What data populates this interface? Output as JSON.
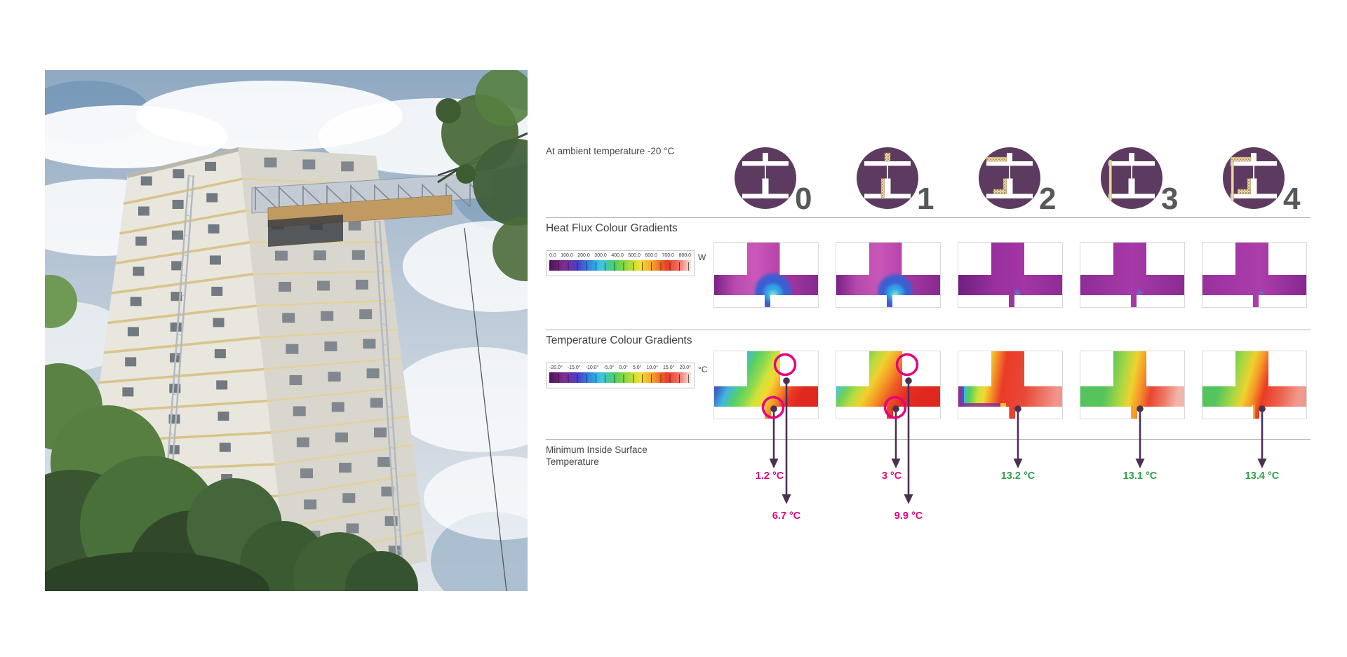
{
  "photo": {
    "description": "low-angle photo of a white brick tower block with yellow stripe bands, rooftop construction platform and hoist masts, trees and cloudy sky"
  },
  "ambient_note": "At ambient temperature -20 °C",
  "detail_variants": [
    {
      "label": "0",
      "icon": "junction-uninsulated"
    },
    {
      "label": "1",
      "icon": "junction-insulated-wall-ends"
    },
    {
      "label": "2",
      "icon": "junction-insulated-wall-and-slab"
    },
    {
      "label": "3",
      "icon": "junction-external-insulation-layer"
    },
    {
      "label": "4",
      "icon": "junction-external-layer-plus-internal-insulation"
    }
  ],
  "heat_flux": {
    "title": "Heat Flux Colour Gradients",
    "scale": {
      "unit": "W",
      "ticks": [
        "0.0",
        "100.0",
        "200.0",
        "300.0",
        "400.0",
        "500.0",
        "600.0",
        "700.0",
        "800.0"
      ]
    },
    "images": [
      {
        "variant": "0",
        "stops": [
          [
            "#7a2186",
            0
          ],
          [
            "#b84aae",
            20
          ],
          [
            "#c95ab8",
            40
          ],
          [
            "#a93aa4",
            62
          ],
          [
            "#882a90",
            100
          ]
        ],
        "plume": 1.0,
        "glow": true,
        "edge": true
      },
      {
        "variant": "1",
        "stops": [
          [
            "#7a2186",
            0
          ],
          [
            "#b54aae",
            20
          ],
          [
            "#c557b6",
            42
          ],
          [
            "#a93aa4",
            64
          ],
          [
            "#882a90",
            100
          ]
        ],
        "plume": 0.95,
        "glow": true,
        "edge": true
      },
      {
        "variant": "2",
        "stops": [
          [
            "#6f1f7e",
            0
          ],
          [
            "#98309e",
            35
          ],
          [
            "#a535a5",
            62
          ],
          [
            "#8e2d96",
            100
          ]
        ],
        "plume": 0.2,
        "glow": false,
        "edge": false
      },
      {
        "variant": "3",
        "stops": [
          [
            "#8e2d96",
            0
          ],
          [
            "#a63aa8",
            50
          ],
          [
            "#8a2b92",
            100
          ]
        ],
        "plume": 0.17,
        "glow": false,
        "edge": false
      },
      {
        "variant": "4",
        "stops": [
          [
            "#96319e",
            0
          ],
          [
            "#ad3dab",
            55
          ],
          [
            "#862990",
            100
          ]
        ],
        "plume": 0.15,
        "glow": false,
        "edge": false
      }
    ]
  },
  "temperature": {
    "title": "Temperature Colour Gradients",
    "scale": {
      "unit": "°C",
      "ticks": [
        "-20.0°",
        "-15.0°",
        "-10.0°",
        "-5.0°",
        "0.0°",
        "5.0°",
        "10.0°",
        "15.0°",
        "20.0°"
      ]
    },
    "images": [
      {
        "variant": "0",
        "angle": [
          0,
          0,
          0.95,
          0.3
        ],
        "stops": [
          [
            "#5b1f77",
            0
          ],
          [
            "#6d34a0",
            10
          ],
          [
            "#3f64c9",
            20
          ],
          [
            "#3fb7e0",
            30
          ],
          [
            "#57cf66",
            41
          ],
          [
            "#8ed94f",
            51
          ],
          [
            "#cfe23a",
            59
          ],
          [
            "#f2d832",
            67
          ],
          [
            "#f59b28",
            77
          ],
          [
            "#ea3b27",
            89
          ],
          [
            "#e02820",
            100
          ]
        ],
        "rings": true,
        "extras": "none"
      },
      {
        "variant": "1",
        "angle": [
          0,
          0,
          0.95,
          0.35
        ],
        "stops": [
          [
            "#7b3f9e",
            0
          ],
          [
            "#4a6fd0",
            10
          ],
          [
            "#46c4e4",
            18
          ],
          [
            "#6ed05c",
            28
          ],
          [
            "#b5dc3f",
            38
          ],
          [
            "#f0d02f",
            48
          ],
          [
            "#f59f26",
            58
          ],
          [
            "#ed5b24",
            70
          ],
          [
            "#e52d22",
            84
          ],
          [
            "#e02820",
            100
          ]
        ],
        "rings": true,
        "extras": "none"
      },
      {
        "variant": "2",
        "angle": [
          0,
          0,
          1,
          0.1
        ],
        "stops": [
          [
            "#7a2a8e",
            0
          ],
          [
            "#4155c8",
            5
          ],
          [
            "#3fb7e0",
            10
          ],
          [
            "#52cf5f",
            17
          ],
          [
            "#c9e23a",
            25
          ],
          [
            "#f2d832",
            31
          ],
          [
            "#f59b28",
            37
          ],
          [
            "#ea3b27",
            47
          ],
          [
            "#e84a38",
            70
          ],
          [
            "#f0958a",
            100
          ]
        ],
        "rings": false,
        "extras": "edge2"
      },
      {
        "variant": "3",
        "angle": [
          0,
          0,
          1,
          0.12
        ],
        "stops": [
          [
            "#56c45c",
            0
          ],
          [
            "#56c45c",
            30
          ],
          [
            "#a8d842",
            45
          ],
          [
            "#f0d12f",
            55
          ],
          [
            "#f59b28",
            63
          ],
          [
            "#ea4530",
            74
          ],
          [
            "#ed7a66",
            88
          ],
          [
            "#f2b4a8",
            100
          ]
        ],
        "rings": false,
        "extras": "stem"
      },
      {
        "variant": "4",
        "angle": [
          0,
          0,
          1,
          0.18
        ],
        "stops": [
          [
            "#56c45c",
            0
          ],
          [
            "#56c45c",
            25
          ],
          [
            "#a8d842",
            40
          ],
          [
            "#f0d12f",
            50
          ],
          [
            "#f59b28",
            58
          ],
          [
            "#ea3b27",
            68
          ],
          [
            "#ec6450",
            85
          ],
          [
            "#f0988c",
            100
          ]
        ],
        "rings": false,
        "extras": "stem"
      }
    ]
  },
  "min_surface": {
    "title_line1": "Minimum Inside Surface",
    "title_line2": "Temperature",
    "values": [
      {
        "variant": "0",
        "junction": "1.2 °C",
        "surface": "6.7 °C",
        "status": "below-threshold"
      },
      {
        "variant": "1",
        "junction": "3 °C",
        "surface": "9.9 °C",
        "status": "below-threshold"
      },
      {
        "variant": "2",
        "junction": "13.2 °C",
        "status": "acceptable"
      },
      {
        "variant": "3",
        "junction": "13.1 °C",
        "status": "acceptable"
      },
      {
        "variant": "4",
        "junction": "13.4 °C",
        "status": "acceptable"
      }
    ]
  },
  "colors": {
    "circle_plum": "#5d3a60",
    "pin_purple": "#4a3151",
    "alert_pink": "#e6007e",
    "ok_green": "#2f9e49",
    "text_dark": "#414042",
    "divider_gray": "#a9abae",
    "insulation_yellow": "#e9d79c",
    "rainbow": [
      [
        "#4b1259",
        0
      ],
      [
        "#832a8e",
        10
      ],
      [
        "#4b3fc4",
        20
      ],
      [
        "#2f86dc",
        28
      ],
      [
        "#3cc3e8",
        36
      ],
      [
        "#4ecf62",
        46
      ],
      [
        "#a6d93a",
        56
      ],
      [
        "#f2e132",
        64
      ],
      [
        "#f6a02b",
        73
      ],
      [
        "#ec3b28",
        83
      ],
      [
        "#ee6e62",
        91
      ],
      [
        "#f7e4e1",
        100
      ]
    ]
  }
}
